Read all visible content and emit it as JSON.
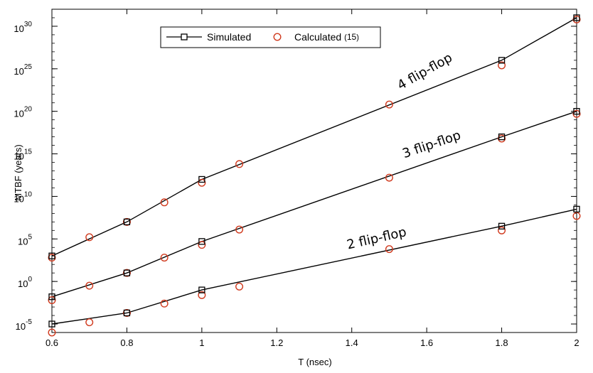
{
  "chart_data": {
    "type": "line",
    "title": "",
    "xlabel": "T (nsec)",
    "ylabel": "MTBF (years)",
    "xlim": [
      0.6,
      2.0
    ],
    "ylim_exponent": [
      -6,
      32
    ],
    "yscale": "log",
    "xticks": [
      0.6,
      0.8,
      1.0,
      1.2,
      1.4,
      1.6,
      1.8,
      2.0
    ],
    "xtick_labels": [
      "0.6",
      "0.8",
      "1",
      "1.2",
      "1.4",
      "1.6",
      "1.8",
      "2"
    ],
    "ytick_exponents": [
      -5,
      0,
      5,
      10,
      15,
      20,
      25,
      30
    ],
    "ytick_labels": [
      {
        "base": "10",
        "exp": "-5"
      },
      {
        "base": "10",
        "exp": "0"
      },
      {
        "base": "10",
        "exp": "5"
      },
      {
        "base": "10",
        "exp": "10"
      },
      {
        "base": "10",
        "exp": "15"
      },
      {
        "base": "10",
        "exp": "20"
      },
      {
        "base": "10",
        "exp": "25"
      },
      {
        "base": "10",
        "exp": "30"
      }
    ],
    "grid": false,
    "legend_position": "top-left",
    "legend": {
      "simulated_label": "Simulated",
      "calculated_label": "Calculated",
      "calculated_ref": "15"
    },
    "series": [
      {
        "name": "2 flip-flop",
        "simulated": {
          "x": [
            0.6,
            0.8,
            1.0,
            1.8,
            2.0
          ],
          "log10_y": [
            -5.0,
            -3.7,
            -1.0,
            6.5,
            8.5
          ]
        },
        "calculated": {
          "x": [
            0.6,
            0.7,
            0.8,
            0.9,
            1.0,
            1.1,
            1.5,
            1.8,
            2.0
          ],
          "log10_y": [
            -6.0,
            -4.8,
            -3.7,
            -2.6,
            -1.6,
            -0.6,
            3.8,
            6.0,
            7.7
          ]
        }
      },
      {
        "name": "3 flip-flop",
        "simulated": {
          "x": [
            0.6,
            0.8,
            1.0,
            1.8,
            2.0
          ],
          "log10_y": [
            -1.8,
            1.0,
            4.7,
            17.0,
            20.0
          ]
        },
        "calculated": {
          "x": [
            0.6,
            0.7,
            0.8,
            0.9,
            1.0,
            1.1,
            1.5,
            1.8,
            2.0
          ],
          "log10_y": [
            -2.2,
            -0.5,
            1.0,
            2.8,
            4.3,
            6.1,
            12.2,
            16.8,
            19.7
          ]
        }
      },
      {
        "name": "4 flip-flop",
        "simulated": {
          "x": [
            0.6,
            0.8,
            1.0,
            1.8,
            2.0
          ],
          "log10_y": [
            3.0,
            7.0,
            12.0,
            26.0,
            31.0
          ]
        },
        "calculated": {
          "x": [
            0.6,
            0.7,
            0.8,
            0.9,
            1.0,
            1.1,
            1.5,
            1.8,
            2.0
          ],
          "log10_y": [
            2.8,
            5.2,
            7.0,
            9.3,
            11.6,
            13.8,
            20.8,
            25.4,
            30.8
          ]
        }
      }
    ],
    "annotations": [
      {
        "text": "4 flip-flop",
        "x": 1.53,
        "log10_y": 22.5,
        "series": 2
      },
      {
        "text": "3 flip-flop",
        "x": 1.54,
        "log10_y": 14.5,
        "series": 1
      },
      {
        "text": "2 flip-flop",
        "x": 1.39,
        "log10_y": 3.8,
        "series": 0
      }
    ],
    "colors": {
      "simulated": "#000000",
      "calculated": "#d03a1e",
      "axis": "#000000"
    }
  }
}
